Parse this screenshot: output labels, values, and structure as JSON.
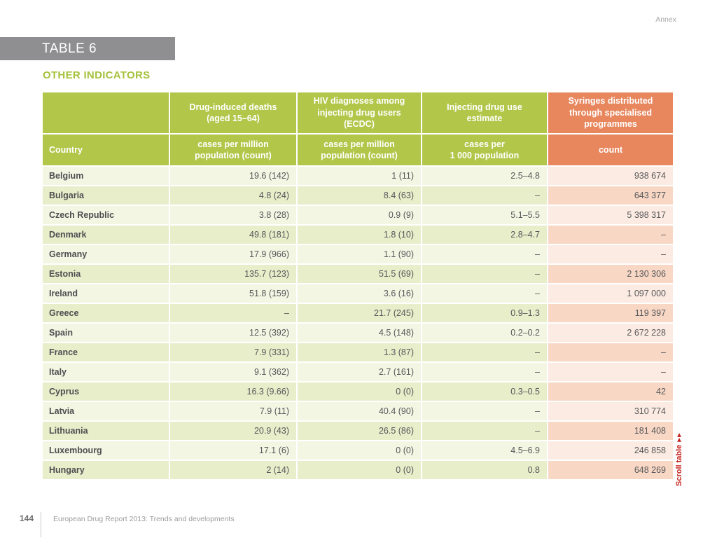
{
  "annex_label": "Annex",
  "table_tag": "TABLE 6",
  "title": "OTHER INDICATORS",
  "scroll": {
    "label": "Scroll table",
    "arrows": "▶▶"
  },
  "footer": {
    "page_number": "144",
    "text": "European Drug Report 2013: Trends and developments"
  },
  "colors": {
    "header_green": "#b2c64a",
    "header_orange": "#e8875e",
    "row_green_light": "#f3f6e3",
    "row_green_dark": "#e8edca",
    "row_pink_light": "#fcebe2",
    "row_pink_dark": "#f8d7c5",
    "accent_red": "#c4211c",
    "tag_bar_gray": "#8f8f91"
  },
  "table": {
    "country_header": "Country",
    "columns": [
      {
        "title": "Drug-induced deaths\n(aged 15–64)",
        "subtitle": "cases per million\npopulation (count)",
        "theme": "green"
      },
      {
        "title": "HIV diagnoses among\ninjecting drug users\n(ECDC)",
        "subtitle": "cases per million\npopulation (count)",
        "theme": "green"
      },
      {
        "title": "Injecting drug use\nestimate",
        "subtitle": "cases per\n1 000 population",
        "theme": "green"
      },
      {
        "title": "Syringes distributed\nthrough specialised\nprogrammes",
        "subtitle": "count",
        "theme": "orange"
      }
    ],
    "rows": [
      {
        "country": "Belgium",
        "deaths": "19.6 (142)",
        "hiv": "1 (11)",
        "idu": "2.5–4.8",
        "syringes": "938 674"
      },
      {
        "country": "Bulgaria",
        "deaths": "4.8 (24)",
        "hiv": "8.4 (63)",
        "idu": "–",
        "syringes": "643 377"
      },
      {
        "country": "Czech Republic",
        "deaths": "3.8 (28)",
        "hiv": "0.9 (9)",
        "idu": "5.1–5.5",
        "syringes": "5 398 317"
      },
      {
        "country": "Denmark",
        "deaths": "49.8 (181)",
        "hiv": "1.8 (10)",
        "idu": "2.8–4.7",
        "syringes": "–"
      },
      {
        "country": "Germany",
        "deaths": "17.9 (966)",
        "hiv": "1.1 (90)",
        "idu": "–",
        "syringes": "–"
      },
      {
        "country": "Estonia",
        "deaths": "135.7 (123)",
        "hiv": "51.5 (69)",
        "idu": "–",
        "syringes": "2 130 306"
      },
      {
        "country": "Ireland",
        "deaths": "51.8 (159)",
        "hiv": "3.6 (16)",
        "idu": "–",
        "syringes": "1 097 000"
      },
      {
        "country": "Greece",
        "deaths": "–",
        "hiv": "21.7 (245)",
        "idu": "0.9–1.3",
        "syringes": "119 397"
      },
      {
        "country": "Spain",
        "deaths": "12.5 (392)",
        "hiv": "4.5 (148)",
        "idu": "0.2–0.2",
        "syringes": "2 672 228"
      },
      {
        "country": "France",
        "deaths": "7.9 (331)",
        "hiv": "1.3 (87)",
        "idu": "–",
        "syringes": "–"
      },
      {
        "country": "Italy",
        "deaths": "9.1 (362)",
        "hiv": "2.7 (161)",
        "idu": "–",
        "syringes": "–"
      },
      {
        "country": "Cyprus",
        "deaths": "16.3 (9.66)",
        "hiv": "0 (0)",
        "idu": "0.3–0.5",
        "syringes": "42"
      },
      {
        "country": "Latvia",
        "deaths": "7.9 (11)",
        "hiv": "40.4 (90)",
        "idu": "–",
        "syringes": "310 774"
      },
      {
        "country": "Lithuania",
        "deaths": "20.9 (43)",
        "hiv": "26.5 (86)",
        "idu": "–",
        "syringes": "181 408"
      },
      {
        "country": "Luxembourg",
        "deaths": "17.1 (6)",
        "hiv": "0 (0)",
        "idu": "4.5–6.9",
        "syringes": "246 858"
      },
      {
        "country": "Hungary",
        "deaths": "2 (14)",
        "hiv": "0 (0)",
        "idu": "0.8",
        "syringes": "648 269"
      }
    ]
  }
}
